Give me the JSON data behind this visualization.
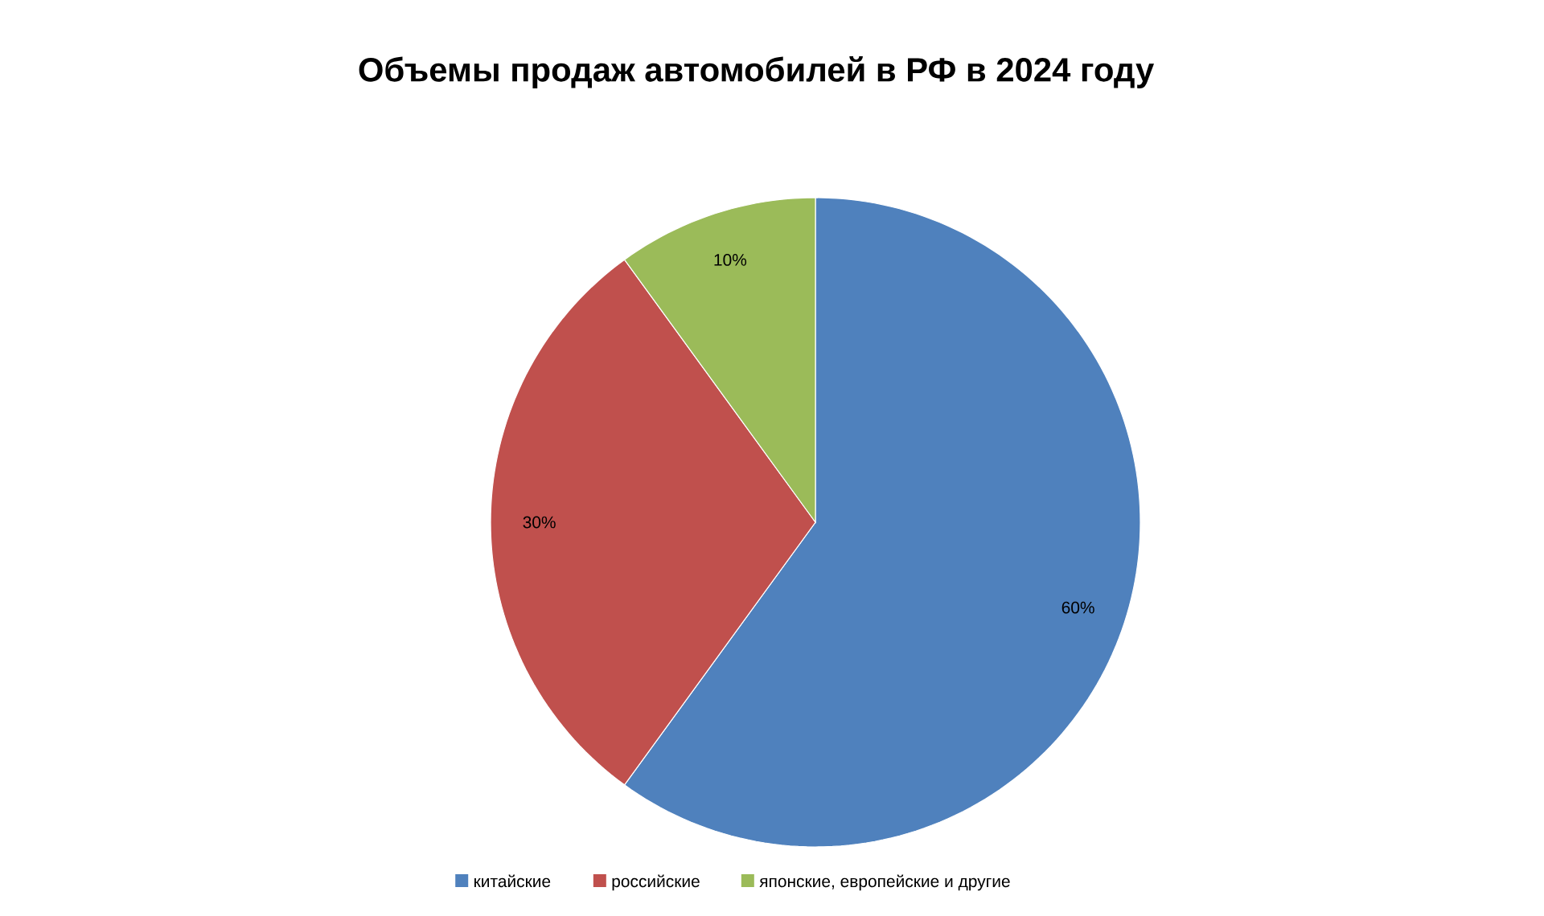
{
  "chart_data": {
    "type": "pie",
    "title": "Объемы продаж автомобилей в РФ в 2024 году",
    "categories": [
      "китайские",
      "российские",
      "японские, европейские и другие"
    ],
    "values": [
      60,
      30,
      10
    ],
    "value_labels": [
      "60%",
      "30%",
      "10%"
    ],
    "colors": [
      "#4f81bd",
      "#c0504d",
      "#9bbb59"
    ],
    "legend": "bottom"
  }
}
